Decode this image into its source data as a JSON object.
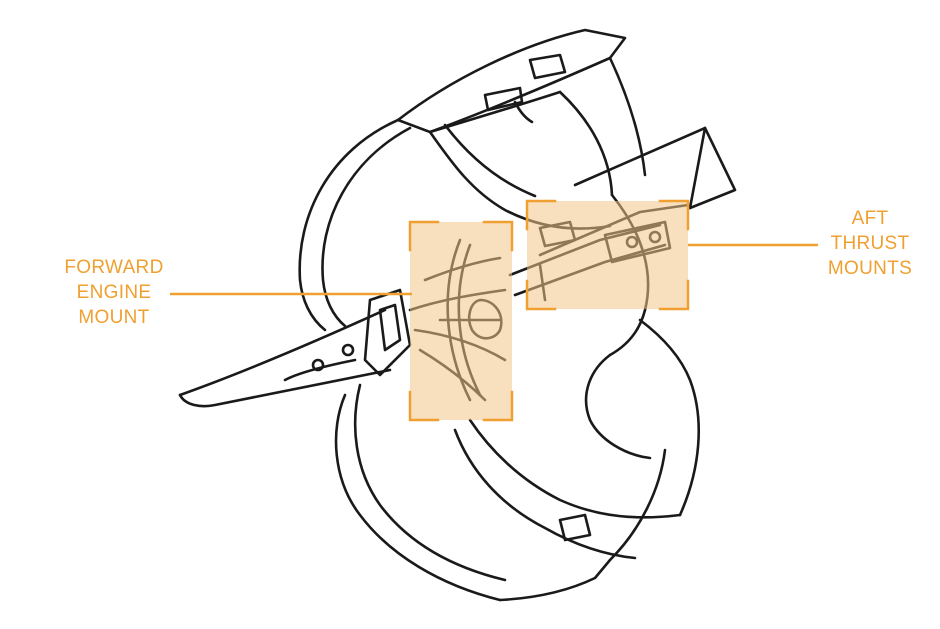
{
  "callouts": {
    "forward": {
      "lines": [
        "FORWARD",
        "ENGINE",
        "MOUNT"
      ]
    },
    "aft": {
      "lines": [
        "AFT",
        "THRUST",
        "MOUNTS"
      ]
    }
  },
  "colors": {
    "callout": "#f0a030",
    "highlight_fill": "#f2c488",
    "sketch_ink": "#1a1a1a"
  },
  "icons": {
    "engine": "engine-pylon-sketch"
  }
}
